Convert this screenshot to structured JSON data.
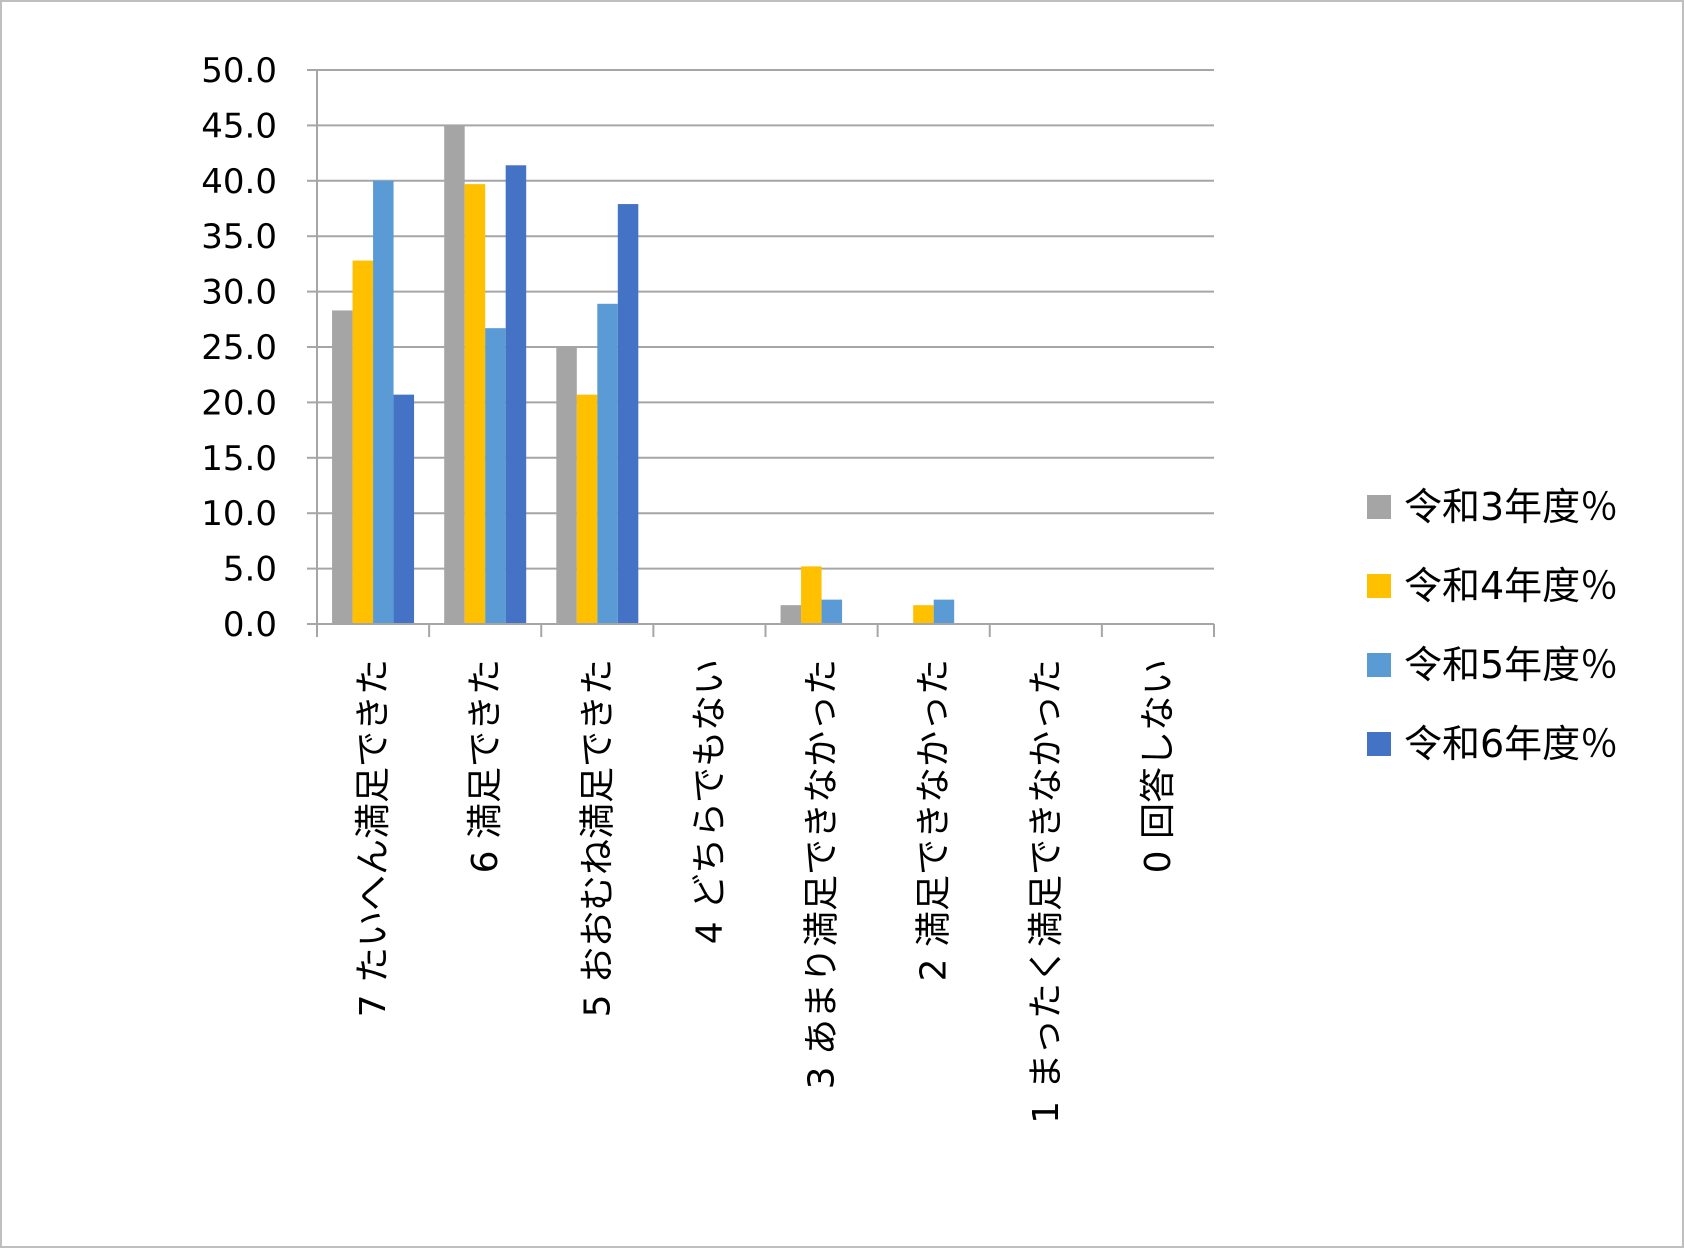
{
  "chart_data": {
    "type": "bar",
    "title": "",
    "xlabel": "",
    "ylabel": "",
    "ylim": [
      0,
      50
    ],
    "ytick_step": 5,
    "ytick_labels": [
      "0.0",
      "5.0",
      "10.0",
      "15.0",
      "20.0",
      "25.0",
      "30.0",
      "35.0",
      "40.0",
      "45.0",
      "50.0"
    ],
    "grid": true,
    "legend_position": "right",
    "categories": [
      "7 たいへん満足できた",
      "6 満足できた",
      "5 おおむね満足できた",
      "4 どちらでもない",
      "3 あまり満足できなかった",
      "2 満足できなかった",
      "1 まったく満足できなかった",
      "0 回答しない"
    ],
    "series": [
      {
        "name": "令和3年度％",
        "color": "#a5a5a5",
        "values": [
          28.3,
          45.0,
          25.0,
          0,
          1.7,
          0,
          0,
          0
        ]
      },
      {
        "name": "令和4年度％",
        "color": "#ffc000",
        "values": [
          32.8,
          39.7,
          20.7,
          0,
          5.2,
          1.7,
          0,
          0
        ]
      },
      {
        "name": "令和5年度％",
        "color": "#5b9bd5",
        "values": [
          40.0,
          26.7,
          28.9,
          0,
          2.2,
          2.2,
          0,
          0
        ]
      },
      {
        "name": "令和6年度％",
        "color": "#4472c4",
        "values": [
          20.7,
          41.4,
          37.9,
          0,
          0,
          0,
          0,
          0
        ]
      }
    ]
  }
}
